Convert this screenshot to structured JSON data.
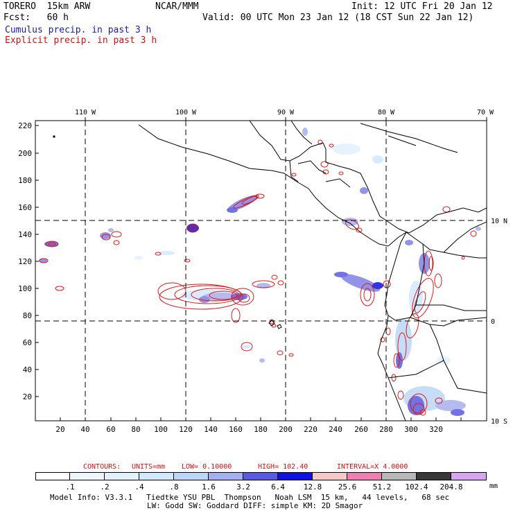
{
  "header": {
    "model": "TORERO  15km ARW",
    "org": "NCAR/MMM",
    "init": "Init: 12 UTC Fri 20 Jan 12",
    "fcst": "Fcst:   60 h",
    "valid": "Valid: 00 UTC Mon 23 Jan 12 (18 CST Sun 22 Jan 12)",
    "legend_cumulus": "Cumulus precip. in past 3 h",
    "legend_explicit": "Explicit precip. in past 3 h"
  },
  "map": {
    "lon_labels": [
      "110 W",
      "100 W",
      "90 W",
      "80 W",
      "70 W"
    ],
    "lat_labels": [
      "10 N",
      "0",
      "10 S"
    ],
    "x_ticks": [
      "20",
      "40",
      "60",
      "80",
      "100",
      "120",
      "140",
      "160",
      "180",
      "200",
      "220",
      "240",
      "260",
      "280",
      "300",
      "320"
    ],
    "y_ticks": [
      "220",
      "200",
      "180",
      "160",
      "140",
      "120",
      "100",
      "80",
      "60",
      "40",
      "20"
    ]
  },
  "contours": {
    "prefix": "CONTOURS:",
    "units": "UNITS=mm",
    "low": "LOW= 0.10000",
    "high": "HIGH=  102.40",
    "interval": "INTERVAL=X  4.0000"
  },
  "colorbar": {
    "labels": [
      ".1",
      ".2",
      ".4",
      ".8",
      "1.6",
      "3.2",
      "6.4",
      "12.8",
      "25.6",
      "51.2",
      "102.4",
      "204.8"
    ],
    "unit": "mm",
    "colors": [
      "#ffffff",
      "#eef6ff",
      "#e2f0ff",
      "#d2e8ff",
      "#bcd8f6",
      "#a6b0ef",
      "#7f82e6",
      "#5a5ae0",
      "#1010e0",
      "#f7c8c8",
      "#ee7fb1",
      "#b8b8b8",
      "#383838",
      "#d8a6f0"
    ]
  },
  "footer": {
    "line1": "Model Info: V3.3.1   Tiedtke YSU PBL  Thompson   Noah LSM  15 km,   44 levels,   68 sec",
    "line2": "LW: Godd SW: Goddard DIFF: simple KM: 2D Smagor"
  }
}
